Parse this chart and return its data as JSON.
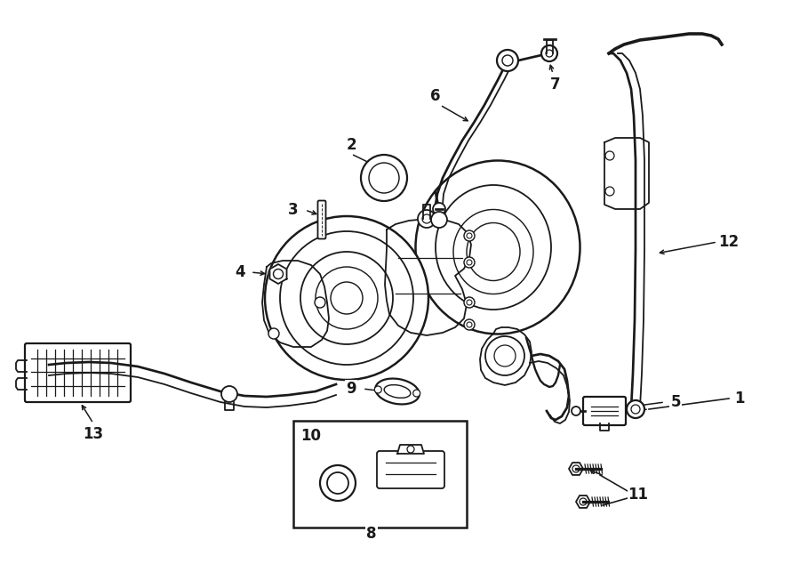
{
  "bg_color": "#ffffff",
  "line_color": "#1a1a1a",
  "figsize": [
    9.0,
    6.61
  ],
  "dpi": 100,
  "lw": 1.3
}
